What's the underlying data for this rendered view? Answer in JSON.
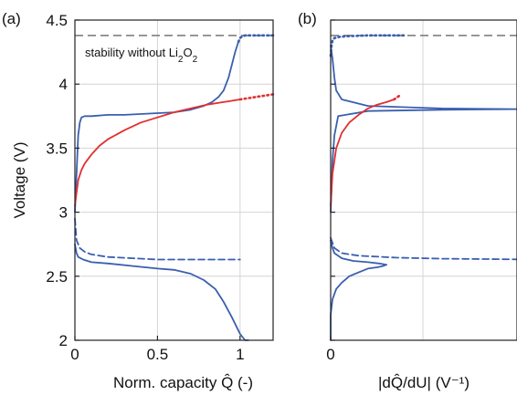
{
  "chart_data": [
    {
      "type": "line",
      "panel_label": "(a)",
      "xlabel": "Norm. capacity Q̂ (-)",
      "ylabel": "Voltage (V)",
      "xlim": [
        0,
        1.2
      ],
      "ylim": [
        2,
        4.5
      ],
      "xticks": [
        "0",
        "0.5",
        "1"
      ],
      "yticks": [
        "2",
        "2.5",
        "3",
        "3.5",
        "4",
        "4.5"
      ],
      "grid": true,
      "annotation": "stability without Li2O2",
      "reference_line": {
        "y": 4.38,
        "style": "dashed",
        "color": "#888888"
      },
      "series": [
        {
          "color": "#3a5fb0",
          "style": "solid",
          "x": [
            0.0,
            0.01,
            0.02,
            0.05,
            0.1,
            0.2,
            0.35,
            0.5,
            0.6,
            0.7,
            0.78,
            0.85,
            0.9,
            0.95,
            1.0,
            1.03,
            1.05
          ],
          "y": [
            2.75,
            2.68,
            2.65,
            2.63,
            2.61,
            2.6,
            2.58,
            2.56,
            2.55,
            2.52,
            2.47,
            2.4,
            2.3,
            2.18,
            2.05,
            2.0,
            2.0
          ]
        },
        {
          "color": "#3a5fb0",
          "style": "dashed",
          "x": [
            0.0,
            0.01,
            0.03,
            0.06,
            0.1,
            0.2,
            0.35,
            0.5,
            0.7,
            1.0
          ],
          "y": [
            2.95,
            2.78,
            2.72,
            2.69,
            2.67,
            2.65,
            2.64,
            2.63,
            2.63,
            2.63
          ]
        },
        {
          "color": "#3a5fb0",
          "style": "solid",
          "x": [
            0.0,
            0.01,
            0.02,
            0.03,
            0.04,
            0.06,
            0.1,
            0.2,
            0.3,
            0.45,
            0.6,
            0.7,
            0.78,
            0.83,
            0.87,
            0.9,
            0.93,
            0.95,
            0.97,
            0.99
          ],
          "y": [
            3.0,
            3.3,
            3.6,
            3.7,
            3.74,
            3.75,
            3.75,
            3.76,
            3.76,
            3.77,
            3.78,
            3.8,
            3.83,
            3.86,
            3.9,
            3.95,
            4.05,
            4.15,
            4.25,
            4.33
          ]
        },
        {
          "color": "#3a5fb0",
          "style": "dotted",
          "x": [
            0.99,
            1.0,
            1.01,
            1.03,
            1.06,
            1.1,
            1.15,
            1.2
          ],
          "y": [
            4.33,
            4.36,
            4.37,
            4.38,
            4.38,
            4.38,
            4.38,
            4.38
          ]
        },
        {
          "color": "#e03030",
          "style": "solid",
          "x": [
            0.0,
            0.01,
            0.02,
            0.04,
            0.06,
            0.1,
            0.15,
            0.2,
            0.3,
            0.4,
            0.5,
            0.6,
            0.7,
            0.8,
            0.9,
            0.95,
            1.0
          ],
          "y": [
            3.05,
            3.15,
            3.25,
            3.33,
            3.38,
            3.45,
            3.52,
            3.57,
            3.64,
            3.7,
            3.74,
            3.78,
            3.81,
            3.84,
            3.86,
            3.87,
            3.88
          ]
        },
        {
          "color": "#e03030",
          "style": "dotted",
          "x": [
            1.0,
            1.05,
            1.1,
            1.15,
            1.2
          ],
          "y": [
            3.88,
            3.89,
            3.9,
            3.91,
            3.92
          ]
        }
      ]
    },
    {
      "type": "line",
      "panel_label": "(b)",
      "xlabel": "|dQ̂/dU| (V⁻¹)",
      "ylim": [
        2,
        4.5
      ],
      "xlim": [
        0,
        1
      ],
      "xticks": [
        "0"
      ],
      "grid": true,
      "reference_line": {
        "y": 4.38,
        "style": "dashed",
        "color": "#888888"
      },
      "series": [
        {
          "color": "#3a5fb0",
          "style": "solid",
          "x": [
            0.0,
            0.0,
            0.01,
            0.03,
            0.06,
            0.1,
            0.15,
            0.2,
            0.25,
            0.28,
            0.3,
            0.26,
            0.2,
            0.12,
            0.06,
            0.02,
            0.01,
            0.0
          ],
          "y": [
            2.0,
            2.2,
            2.32,
            2.4,
            2.45,
            2.5,
            2.53,
            2.56,
            2.57,
            2.58,
            2.59,
            2.6,
            2.61,
            2.62,
            2.64,
            2.68,
            2.72,
            2.78
          ]
        },
        {
          "color": "#3a5fb0",
          "style": "dashed",
          "x": [
            0.0,
            0.02,
            0.06,
            0.15,
            0.35,
            0.6,
            1.0
          ],
          "y": [
            2.8,
            2.72,
            2.68,
            2.66,
            2.645,
            2.637,
            2.632
          ]
        },
        {
          "color": "#3a5fb0",
          "style": "solid",
          "x": [
            0.0,
            0.01,
            0.02,
            0.04,
            0.2,
            0.6,
            1.0,
            0.6,
            0.2,
            0.06,
            0.03,
            0.02,
            0.01,
            0.0
          ],
          "y": [
            3.0,
            3.4,
            3.6,
            3.75,
            3.79,
            3.8,
            3.805,
            3.81,
            3.83,
            3.88,
            3.95,
            4.05,
            4.2,
            4.3
          ]
        },
        {
          "color": "#3a5fb0",
          "style": "dotted",
          "x": [
            0.0,
            0.005,
            0.01,
            0.02,
            0.05,
            0.1,
            0.2,
            0.3,
            0.4
          ],
          "y": [
            4.22,
            4.3,
            4.34,
            4.36,
            4.37,
            4.375,
            4.38,
            4.38,
            4.38
          ]
        },
        {
          "color": "#e03030",
          "style": "solid",
          "x": [
            0.0,
            0.01,
            0.03,
            0.06,
            0.1,
            0.15,
            0.2,
            0.25,
            0.3,
            0.34
          ],
          "y": [
            3.05,
            3.3,
            3.5,
            3.62,
            3.7,
            3.76,
            3.81,
            3.84,
            3.86,
            3.88
          ]
        },
        {
          "color": "#e03030",
          "style": "dotted",
          "x": [
            0.34,
            0.36,
            0.38
          ],
          "y": [
            3.88,
            3.9,
            3.92
          ]
        }
      ]
    }
  ]
}
